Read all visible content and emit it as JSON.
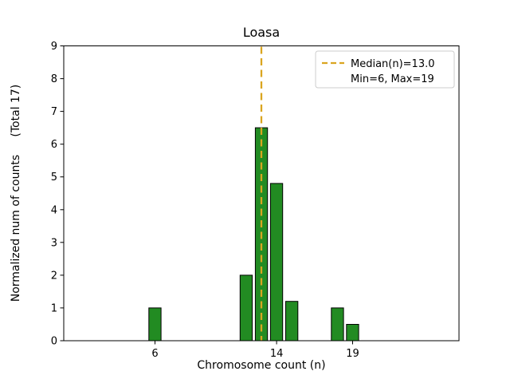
{
  "chart_data": {
    "type": "bar",
    "title": "Loasa",
    "xlabel": "Chromosome count (n)",
    "ylabel": "Normalized num of counts     (Total 17)",
    "total_label": "(Total 17)",
    "bars": [
      {
        "x": 6,
        "height": 1.0
      },
      {
        "x": 12,
        "height": 2.0
      },
      {
        "x": 13,
        "height": 6.5
      },
      {
        "x": 14,
        "height": 4.8
      },
      {
        "x": 15,
        "height": 1.2
      },
      {
        "x": 18,
        "height": 1.0
      },
      {
        "x": 19,
        "height": 0.5
      }
    ],
    "bar_width": 0.8,
    "bar_color": "#228B22",
    "bar_edge_color": "#000000",
    "median_line": {
      "x": 13.0,
      "color": "#DAA520",
      "style": "dashed"
    },
    "legend": {
      "position": "upper right",
      "entries": [
        "Median(n)=13.0",
        "Min=6, Max=19"
      ]
    },
    "xlim": [
      0,
      26
    ],
    "ylim": [
      0,
      9
    ],
    "xticks": [
      6,
      14,
      19
    ],
    "yticks": [
      0,
      1,
      2,
      3,
      4,
      5,
      6,
      7,
      8,
      9
    ],
    "grid": false
  }
}
